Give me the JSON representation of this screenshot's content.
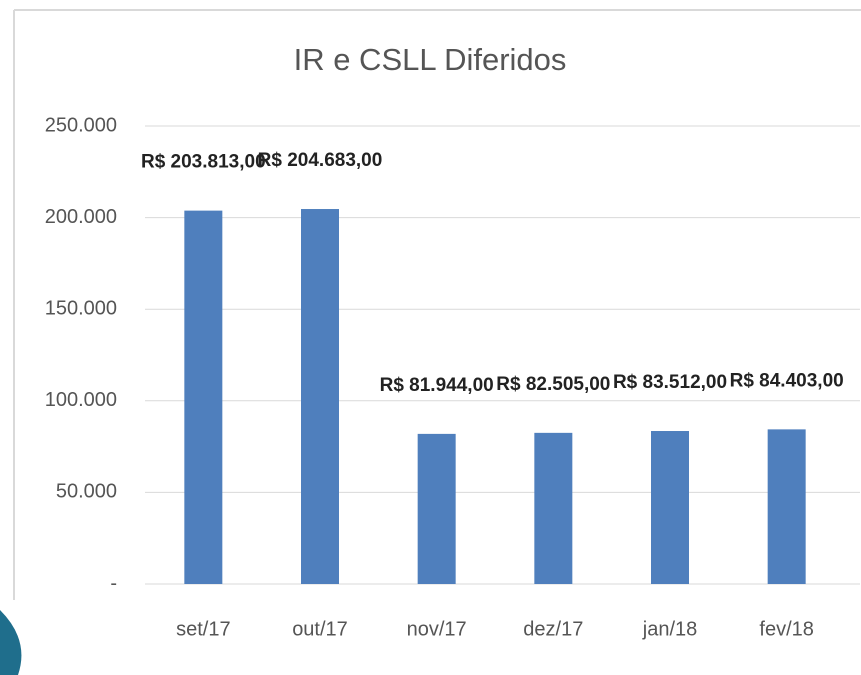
{
  "chart_data": {
    "type": "bar",
    "title": "IR e CSLL Diferidos",
    "categories": [
      "set/17",
      "out/17",
      "nov/17",
      "dez/17",
      "jan/18",
      "fev/18"
    ],
    "values": [
      203813,
      204683,
      81944,
      82505,
      83512,
      84403
    ],
    "value_labels": [
      "R$ 203.813,00",
      "R$ 204.683,00",
      "R$ 81.944,00",
      "R$ 82.505,00",
      "R$ 83.512,00",
      "R$ 84.403,00"
    ],
    "color": "#4f7fbd",
    "ylim": [
      0,
      250000
    ],
    "yticks": [
      {
        "value": 0,
        "label": "-"
      },
      {
        "value": 50000,
        "label": "50.000"
      },
      {
        "value": 100000,
        "label": "100.000"
      },
      {
        "value": 150000,
        "label": "150.000"
      },
      {
        "value": 200000,
        "label": "200.000"
      },
      {
        "value": 250000,
        "label": "250.000"
      }
    ],
    "grid": true
  }
}
